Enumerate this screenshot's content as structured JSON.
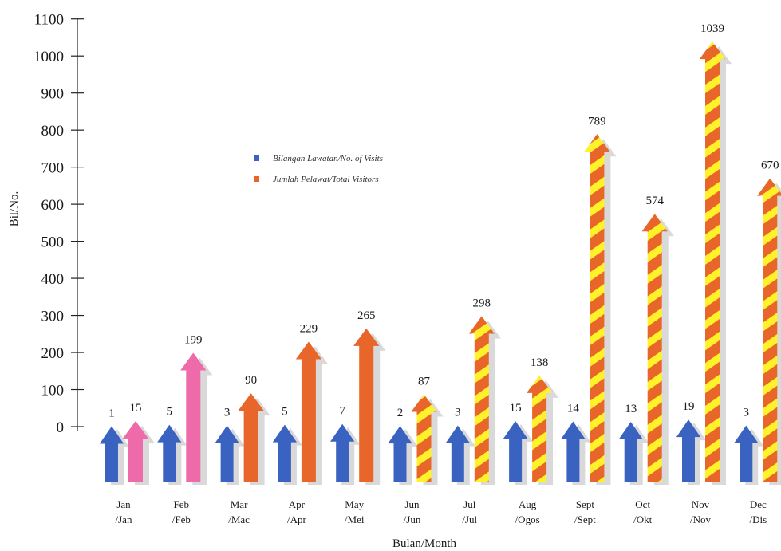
{
  "chart_data": {
    "type": "bar",
    "xlabel": "Bulan/Month",
    "ylabel": "Bil/No.",
    "ylim": [
      0,
      1100
    ],
    "yticks": [
      0,
      100,
      200,
      300,
      400,
      500,
      600,
      700,
      800,
      900,
      1000,
      1100
    ],
    "grid": false,
    "legend_position": "center-left",
    "categories": [
      [
        "Jan",
        "/Jan"
      ],
      [
        "Feb",
        "/Feb"
      ],
      [
        "Mar",
        "/Mac"
      ],
      [
        "Apr",
        "/Apr"
      ],
      [
        "May",
        "/Mei"
      ],
      [
        "Jun",
        "/Jun"
      ],
      [
        "Jul",
        "/Jul"
      ],
      [
        "Aug",
        "/Ogos"
      ],
      [
        "Sept",
        "/Sept"
      ],
      [
        "Oct",
        "/Okt"
      ],
      [
        "Nov",
        "/Nov"
      ],
      [
        "Dec",
        "/Dis"
      ]
    ],
    "series": [
      {
        "name": "Bilangan Lawatan/No. of Visits",
        "color": "#3a62c0",
        "values": [
          1,
          5,
          3,
          5,
          7,
          2,
          3,
          15,
          14,
          13,
          19,
          3
        ]
      },
      {
        "name": "Jumlah Pelawat/Total Visitors",
        "color": "#e8662a",
        "values": [
          15,
          199,
          90,
          229,
          265,
          87,
          298,
          138,
          789,
          574,
          1039,
          670
        ]
      }
    ],
    "colors": {
      "visits": "#3a62c0",
      "visitors": "#e8662a",
      "highlight_pink": "#ef6aa8",
      "stripe_yellow": "#fff12a",
      "shadow": "#d9d9d9"
    }
  }
}
